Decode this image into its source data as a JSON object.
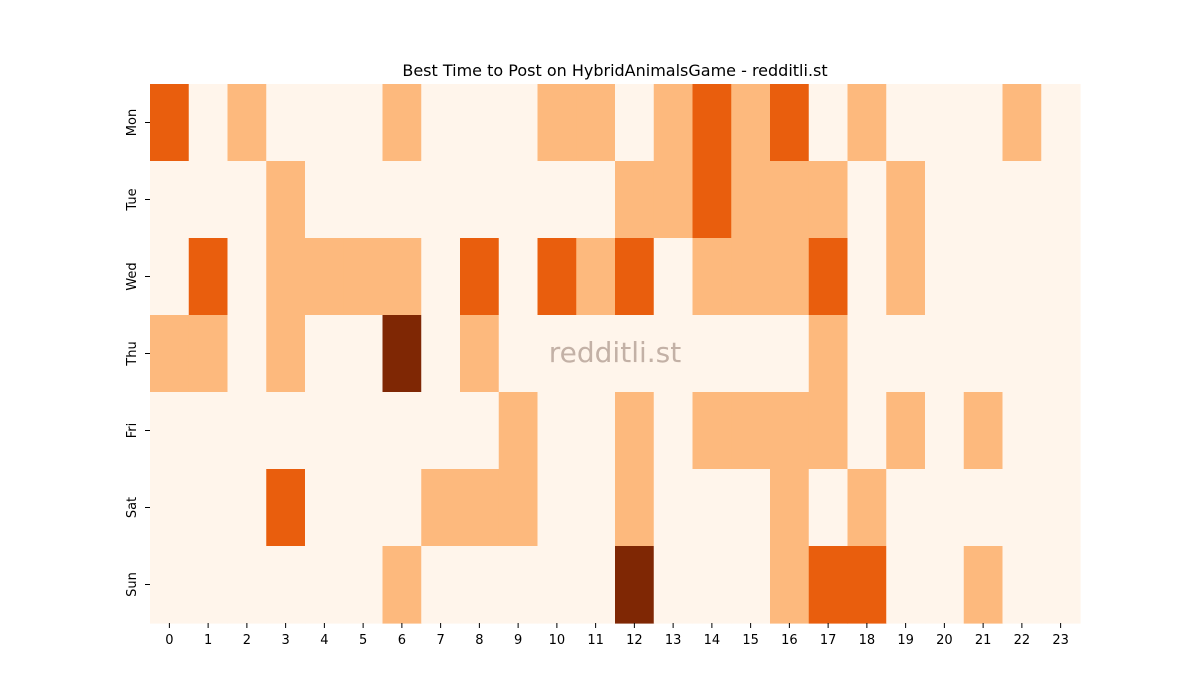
{
  "chart_data": {
    "type": "heatmap",
    "title": "Best Time to Post on HybridAnimalsGame - redditli.st",
    "watermark": "redditli.st",
    "xlabel": "",
    "ylabel": "",
    "x": [
      "0",
      "1",
      "2",
      "3",
      "4",
      "5",
      "6",
      "7",
      "8",
      "9",
      "10",
      "11",
      "12",
      "13",
      "14",
      "15",
      "16",
      "17",
      "18",
      "19",
      "20",
      "21",
      "22",
      "23"
    ],
    "y": [
      "Mon",
      "Tue",
      "Wed",
      "Thu",
      "Fri",
      "Sat",
      "Sun"
    ],
    "values": [
      [
        2,
        0,
        1,
        0,
        0,
        0,
        1,
        0,
        0,
        0,
        1,
        1,
        0,
        1,
        2,
        1,
        2,
        0,
        1,
        0,
        0,
        0,
        1,
        0
      ],
      [
        0,
        0,
        0,
        1,
        0,
        0,
        0,
        0,
        0,
        0,
        0,
        0,
        1,
        1,
        2,
        1,
        1,
        1,
        0,
        1,
        0,
        0,
        0,
        0
      ],
      [
        0,
        2,
        0,
        1,
        1,
        1,
        1,
        0,
        2,
        0,
        2,
        1,
        2,
        0,
        1,
        1,
        1,
        2,
        0,
        1,
        0,
        0,
        0,
        0
      ],
      [
        1,
        1,
        0,
        1,
        0,
        0,
        3,
        0,
        1,
        0,
        0,
        0,
        0,
        0,
        0,
        0,
        0,
        1,
        0,
        0,
        0,
        0,
        0,
        0
      ],
      [
        0,
        0,
        0,
        0,
        0,
        0,
        0,
        0,
        0,
        1,
        0,
        0,
        1,
        0,
        1,
        1,
        1,
        1,
        0,
        1,
        0,
        1,
        0,
        0
      ],
      [
        0,
        0,
        0,
        2,
        0,
        0,
        0,
        1,
        1,
        1,
        0,
        0,
        1,
        0,
        0,
        0,
        1,
        0,
        1,
        0,
        0,
        0,
        0,
        0
      ],
      [
        0,
        0,
        0,
        0,
        0,
        0,
        1,
        0,
        0,
        0,
        0,
        0,
        3,
        0,
        0,
        0,
        1,
        2,
        2,
        0,
        0,
        1,
        0,
        0
      ]
    ],
    "colormap": "Oranges",
    "colors": [
      "#fff5eb",
      "#fdb97d",
      "#e95e0d",
      "#7f2704"
    ],
    "grid": false,
    "legend": "none"
  }
}
